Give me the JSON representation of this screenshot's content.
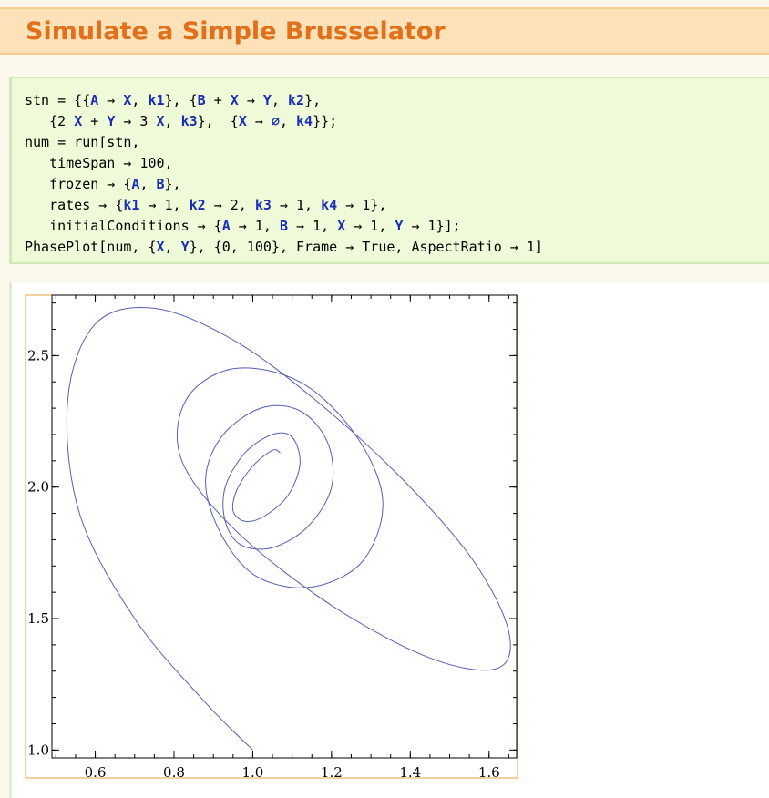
{
  "title": "Simulate a Simple Brusselator",
  "code_lines": [
    [
      {
        "t": "stn = {{"
      },
      {
        "t": "A",
        "c": "v"
      },
      {
        "t": " → "
      },
      {
        "t": "X",
        "c": "v"
      },
      {
        "t": ", "
      },
      {
        "t": "k1",
        "c": "v"
      },
      {
        "t": "}, {"
      },
      {
        "t": "B",
        "c": "v"
      },
      {
        "t": " + "
      },
      {
        "t": "X",
        "c": "v"
      },
      {
        "t": " → "
      },
      {
        "t": "Y",
        "c": "v"
      },
      {
        "t": ", "
      },
      {
        "t": "k2",
        "c": "v"
      },
      {
        "t": "},"
      }
    ],
    [
      {
        "t": "   {2 "
      },
      {
        "t": "X",
        "c": "v"
      },
      {
        "t": " + "
      },
      {
        "t": "Y",
        "c": "v"
      },
      {
        "t": " → 3 "
      },
      {
        "t": "X",
        "c": "v"
      },
      {
        "t": ", "
      },
      {
        "t": "k3",
        "c": "v"
      },
      {
        "t": "},  {"
      },
      {
        "t": "X",
        "c": "v"
      },
      {
        "t": " → "
      },
      {
        "t": "∅",
        "c": "v"
      },
      {
        "t": ", "
      },
      {
        "t": "k4",
        "c": "v"
      },
      {
        "t": "}};"
      }
    ],
    [
      {
        "t": "num = run[stn,"
      }
    ],
    [
      {
        "t": "   timeSpan → 100,"
      }
    ],
    [
      {
        "t": "   frozen → {"
      },
      {
        "t": "A",
        "c": "v"
      },
      {
        "t": ", "
      },
      {
        "t": "B",
        "c": "v"
      },
      {
        "t": "},"
      }
    ],
    [
      {
        "t": "   rates → {"
      },
      {
        "t": "k1",
        "c": "v"
      },
      {
        "t": " → 1, "
      },
      {
        "t": "k2",
        "c": "v"
      },
      {
        "t": " → 2, "
      },
      {
        "t": "k3",
        "c": "v"
      },
      {
        "t": " → 1, "
      },
      {
        "t": "k4",
        "c": "v"
      },
      {
        "t": " → 1},"
      }
    ],
    [
      {
        "t": "   initialConditions → {"
      },
      {
        "t": "A",
        "c": "v"
      },
      {
        "t": " → 1, "
      },
      {
        "t": "B",
        "c": "v"
      },
      {
        "t": " → 1, "
      },
      {
        "t": "X",
        "c": "v"
      },
      {
        "t": " → 1, "
      },
      {
        "t": "Y",
        "c": "v"
      },
      {
        "t": " → 1}];"
      }
    ],
    [
      {
        "t": "PhasePlot[num, {"
      },
      {
        "t": "X",
        "c": "v"
      },
      {
        "t": ", "
      },
      {
        "t": "Y",
        "c": "v"
      },
      {
        "t": "}, {0, 100}, Frame → True, AspectRatio → 1]"
      }
    ]
  ],
  "chart_data": {
    "type": "line",
    "title": "",
    "xlabel": "",
    "ylabel": "",
    "xlim": [
      0.49,
      1.67
    ],
    "ylim": [
      0.97,
      2.73
    ],
    "x_ticks": [
      "0.6",
      "0.8",
      "1.0",
      "1.2",
      "1.4",
      "1.6"
    ],
    "y_ticks": [
      "1.0",
      "1.5",
      "2.0",
      "2.5"
    ],
    "grid": false,
    "series": [
      {
        "color": "#5560b0",
        "description": "phase trajectory spiralling inward from (1.0, 1.0) toward the fixed point near (1.0, 2.0)",
        "x": [
          1.0,
          0.88,
          0.7,
          0.56,
          0.53,
          0.6,
          0.75,
          0.95,
          1.16,
          1.38,
          1.56,
          1.65,
          1.62,
          1.45,
          1.2,
          0.96,
          0.82,
          0.83,
          0.95,
          1.12,
          1.26,
          1.33,
          1.28,
          1.15,
          1.01,
          0.92,
          0.88,
          0.92,
          1.02,
          1.12,
          1.19,
          1.2,
          1.14,
          1.05,
          0.97,
          0.93,
          0.93,
          0.98,
          1.05,
          1.1,
          1.12,
          1.09,
          1.03,
          0.98,
          0.95,
          0.96,
          1.0,
          1.05,
          1.07
        ],
        "y": [
          1.0,
          1.18,
          1.5,
          1.9,
          2.33,
          2.62,
          2.68,
          2.56,
          2.33,
          2.03,
          1.72,
          1.45,
          1.31,
          1.35,
          1.55,
          1.83,
          2.1,
          2.33,
          2.45,
          2.4,
          2.2,
          1.95,
          1.72,
          1.62,
          1.66,
          1.82,
          2.02,
          2.19,
          2.3,
          2.29,
          2.17,
          2.0,
          1.85,
          1.77,
          1.78,
          1.87,
          2.0,
          2.13,
          2.2,
          2.19,
          2.09,
          1.97,
          1.89,
          1.87,
          1.91,
          1.99,
          2.08,
          2.14,
          2.13
        ]
      }
    ]
  }
}
